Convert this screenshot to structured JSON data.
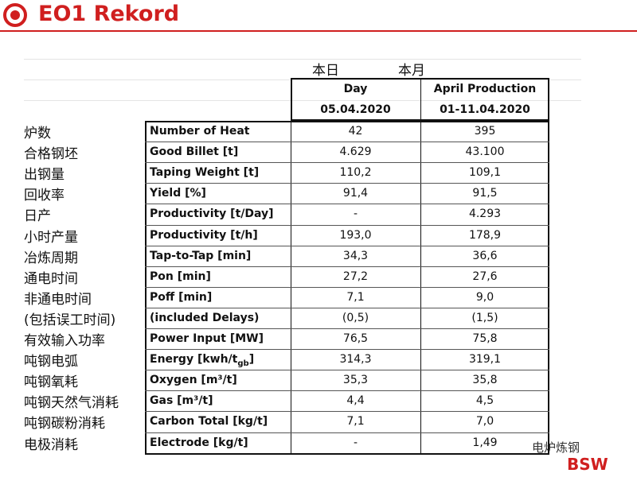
{
  "header": {
    "title": "EO1 Rekord"
  },
  "table": {
    "cn_headers": [
      "本日",
      "本月"
    ],
    "col_headers": [
      {
        "line1": "Day",
        "line2": "05.04.2020"
      },
      {
        "line1": "April Production",
        "line2": "01-11.04.2020"
      }
    ],
    "rows": [
      {
        "cn": "炉数",
        "label": "Number of Heat",
        "day": "42",
        "month": "395"
      },
      {
        "cn": "合格钢坯",
        "label": "Good Billet [t]",
        "day": "4.629",
        "month": "43.100"
      },
      {
        "cn": "出钢量",
        "label": "Taping Weight [t]",
        "day": "110,2",
        "month": "109,1"
      },
      {
        "cn": "回收率",
        "label": "Yield [%]",
        "day": "91,4",
        "month": "91,5"
      },
      {
        "cn": "日产",
        "label": "Productivity [t/Day]",
        "day": "-",
        "month": "4.293"
      },
      {
        "cn": "小时产量",
        "label": "Productivity [t/h]",
        "day": "193,0",
        "month": "178,9"
      },
      {
        "cn": "冶炼周期",
        "label": "Tap-to-Tap [min]",
        "day": "34,3",
        "month": "36,6"
      },
      {
        "cn": "通电时间",
        "label": "Pon [min]",
        "day": "27,2",
        "month": "27,6"
      },
      {
        "cn": "非通电时间",
        "label": "Poff [min]",
        "day": "7,1",
        "month": "9,0"
      },
      {
        "cn": "(包括误工时间)",
        "label": "(included Delays)",
        "day": "(0,5)",
        "month": "(1,5)"
      },
      {
        "cn": "有效输入功率",
        "label": "Power Input [MW]",
        "day": "76,5",
        "month": "75,8"
      },
      {
        "cn": "吨钢电弧",
        "label": "Energy [kwh/t",
        "label_sub": "gb",
        "label_after": "]",
        "day": "314,3",
        "month": "319,1"
      },
      {
        "cn": "吨钢氧耗",
        "label": "Oxygen [m³/t]",
        "day": "35,3",
        "month": "35,8"
      },
      {
        "cn": "吨钢天然气消耗",
        "label": "Gas [m³/t]",
        "day": "4,4",
        "month": "4,5"
      },
      {
        "cn": "吨钢碳粉消耗",
        "label": "Carbon Total [kg/t]",
        "day": "7,1",
        "month": "7,0"
      },
      {
        "cn": "电极消耗",
        "label": "Electrode [kg/t]",
        "day": "-",
        "month": "1,49"
      }
    ]
  },
  "watermark": {
    "channel": "电炉炼钢",
    "logo": "BSW"
  }
}
